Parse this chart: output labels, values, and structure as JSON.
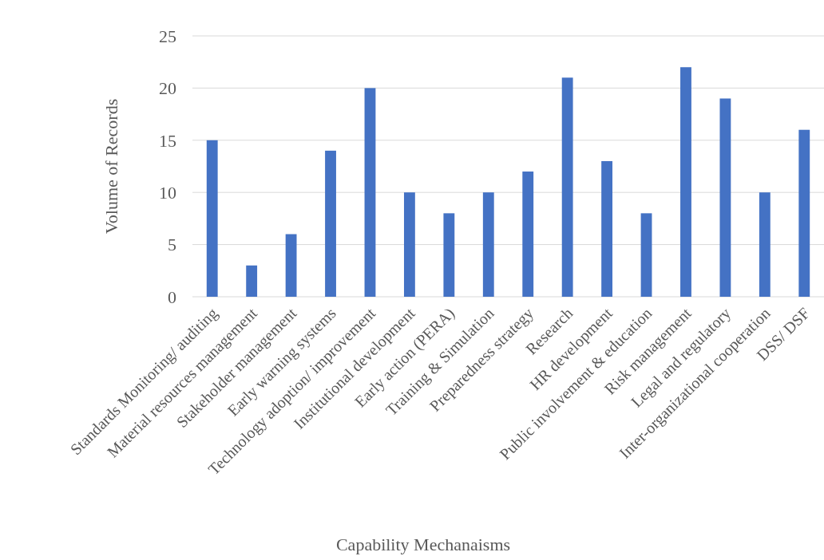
{
  "chart_data": {
    "type": "bar",
    "xlabel": "Capability Mechanaisms",
    "ylabel": "Volume of Records",
    "categories": [
      "Standards Monitoring/ auditing",
      "Material resources management",
      "Stakeholder management",
      "Early warning systems",
      "Technology adoption/ improvement",
      "Institutional development",
      "Early action (PERA)",
      "Training & Simulation",
      "Preparedness strategy",
      "Research",
      "HR development",
      "Public involvement & education",
      "Risk management",
      "Legal and regulatory",
      "Inter-organizational cooperation",
      "DSS/ DSF"
    ],
    "values": [
      15,
      3,
      6,
      14,
      20,
      10,
      8,
      10,
      12,
      21,
      13,
      8,
      22,
      19,
      10,
      16
    ],
    "color": "#4472c4",
    "ylim": [
      0,
      25
    ],
    "yticks": [
      0,
      5,
      10,
      15,
      20,
      25
    ],
    "grid": "y"
  }
}
